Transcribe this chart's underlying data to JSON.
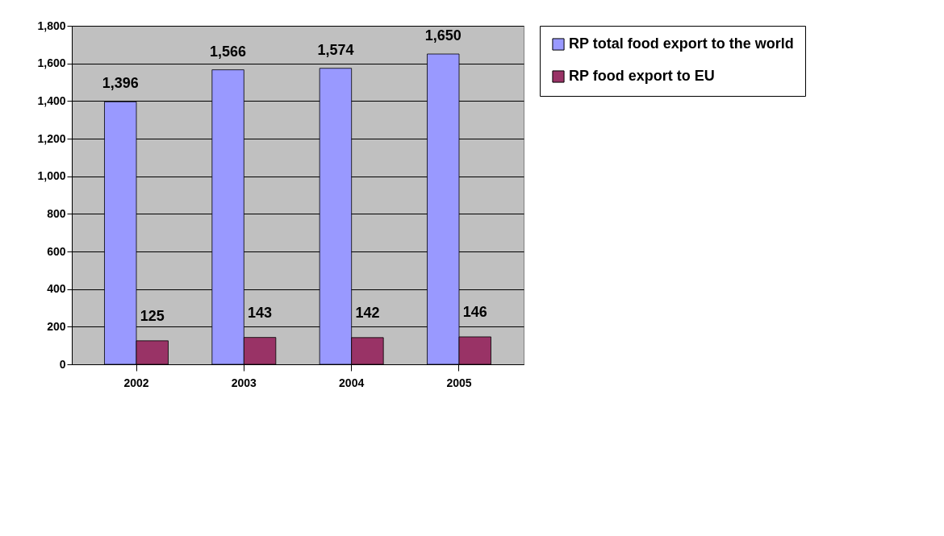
{
  "chart_data": {
    "type": "bar",
    "categories": [
      "2002",
      "2003",
      "2004",
      "2005"
    ],
    "series": [
      {
        "name": "RP total food export to the world",
        "color": "#9999ff",
        "values": [
          1396,
          1566,
          1574,
          1650
        ],
        "value_labels": [
          "1,396",
          "1,566",
          "1,574",
          "1,650"
        ]
      },
      {
        "name": "RP food export to EU",
        "color": "#993366",
        "values": [
          125,
          143,
          142,
          146
        ],
        "value_labels": [
          "125",
          "143",
          "142",
          "146"
        ]
      }
    ],
    "ylim": [
      0,
      1800
    ],
    "yticks": [
      0,
      200,
      400,
      600,
      800,
      {
        "value": 1000,
        "label": "1,000"
      },
      {
        "value": 1200,
        "label": "1,200"
      },
      {
        "value": 1400,
        "label": "1,400"
      },
      {
        "value": 1600,
        "label": "1,600"
      },
      {
        "value": 1800,
        "label": "1,800"
      }
    ],
    "grid": "y",
    "legend": "right"
  }
}
